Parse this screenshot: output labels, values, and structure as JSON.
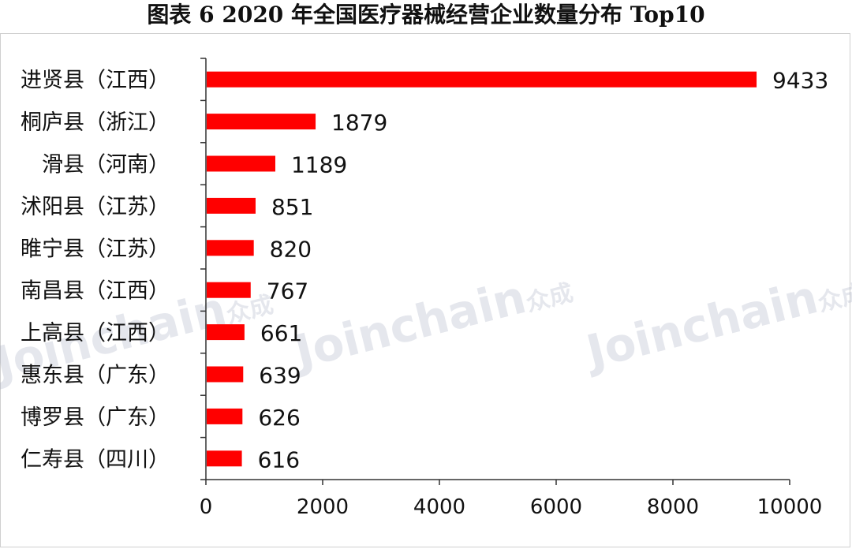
{
  "chart_data": {
    "type": "bar",
    "orientation": "horizontal",
    "title": "图表 6   2020 年全国医疗器械经营企业数量分布 Top10",
    "categories": [
      "进贤县（江西）",
      "桐庐县（浙江）",
      "滑县（河南）",
      "沭阳县（江苏）",
      "睢宁县（江苏）",
      "南昌县（江西）",
      "上高县（江西）",
      "惠东县（广东）",
      "博罗县（广东）",
      "仁寿县（四川）"
    ],
    "values": [
      9433,
      1879,
      1189,
      851,
      820,
      767,
      661,
      639,
      626,
      616
    ],
    "xlim": [
      0,
      10000
    ],
    "xticks": [
      0,
      2000,
      4000,
      6000,
      8000,
      10000
    ],
    "bar_color": "#ff0000",
    "grid": false,
    "legend": "none"
  },
  "watermark": {
    "brand": "Joinchain",
    "brand_cn": "众成"
  }
}
